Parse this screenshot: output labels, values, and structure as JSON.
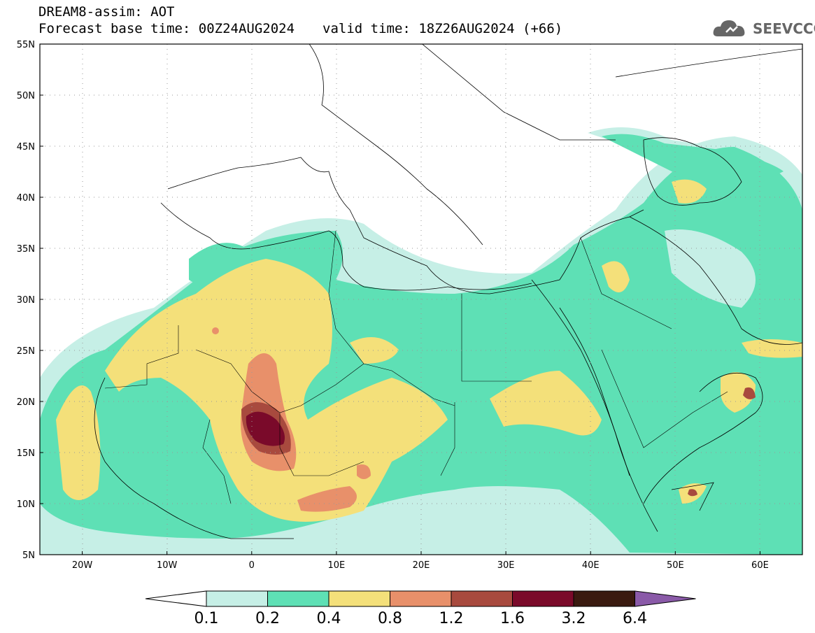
{
  "header": {
    "model_line": "DREAM8-assim: AOT",
    "base_time": "Forecast base time: 00Z24AUG2024",
    "valid_time": "valid time: 18Z26AUG2024 (+66)"
  },
  "logo": {
    "text": "SEEVCCC",
    "icon": "cloud-icon"
  },
  "map": {
    "lon_range": [
      -25,
      65
    ],
    "lat_range": [
      5,
      55
    ],
    "lat_labels": [
      "55N",
      "50N",
      "45N",
      "40N",
      "35N",
      "30N",
      "25N",
      "20N",
      "15N",
      "10N",
      "5N"
    ],
    "lon_labels": [
      "20W",
      "10W",
      "0",
      "10E",
      "20E",
      "30E",
      "40E",
      "50E",
      "60E"
    ],
    "grid": "dotted"
  },
  "colorbar": {
    "levels": [
      "0.1",
      "0.2",
      "0.4",
      "0.8",
      "1.2",
      "1.6",
      "3.2",
      "6.4"
    ],
    "colors": [
      "#ffffff",
      "#c6efe6",
      "#5ee0b5",
      "#f4e07a",
      "#e8906a",
      "#a84a3e",
      "#7a0a2a",
      "#3a1a10",
      "#8a5aa8"
    ]
  }
}
